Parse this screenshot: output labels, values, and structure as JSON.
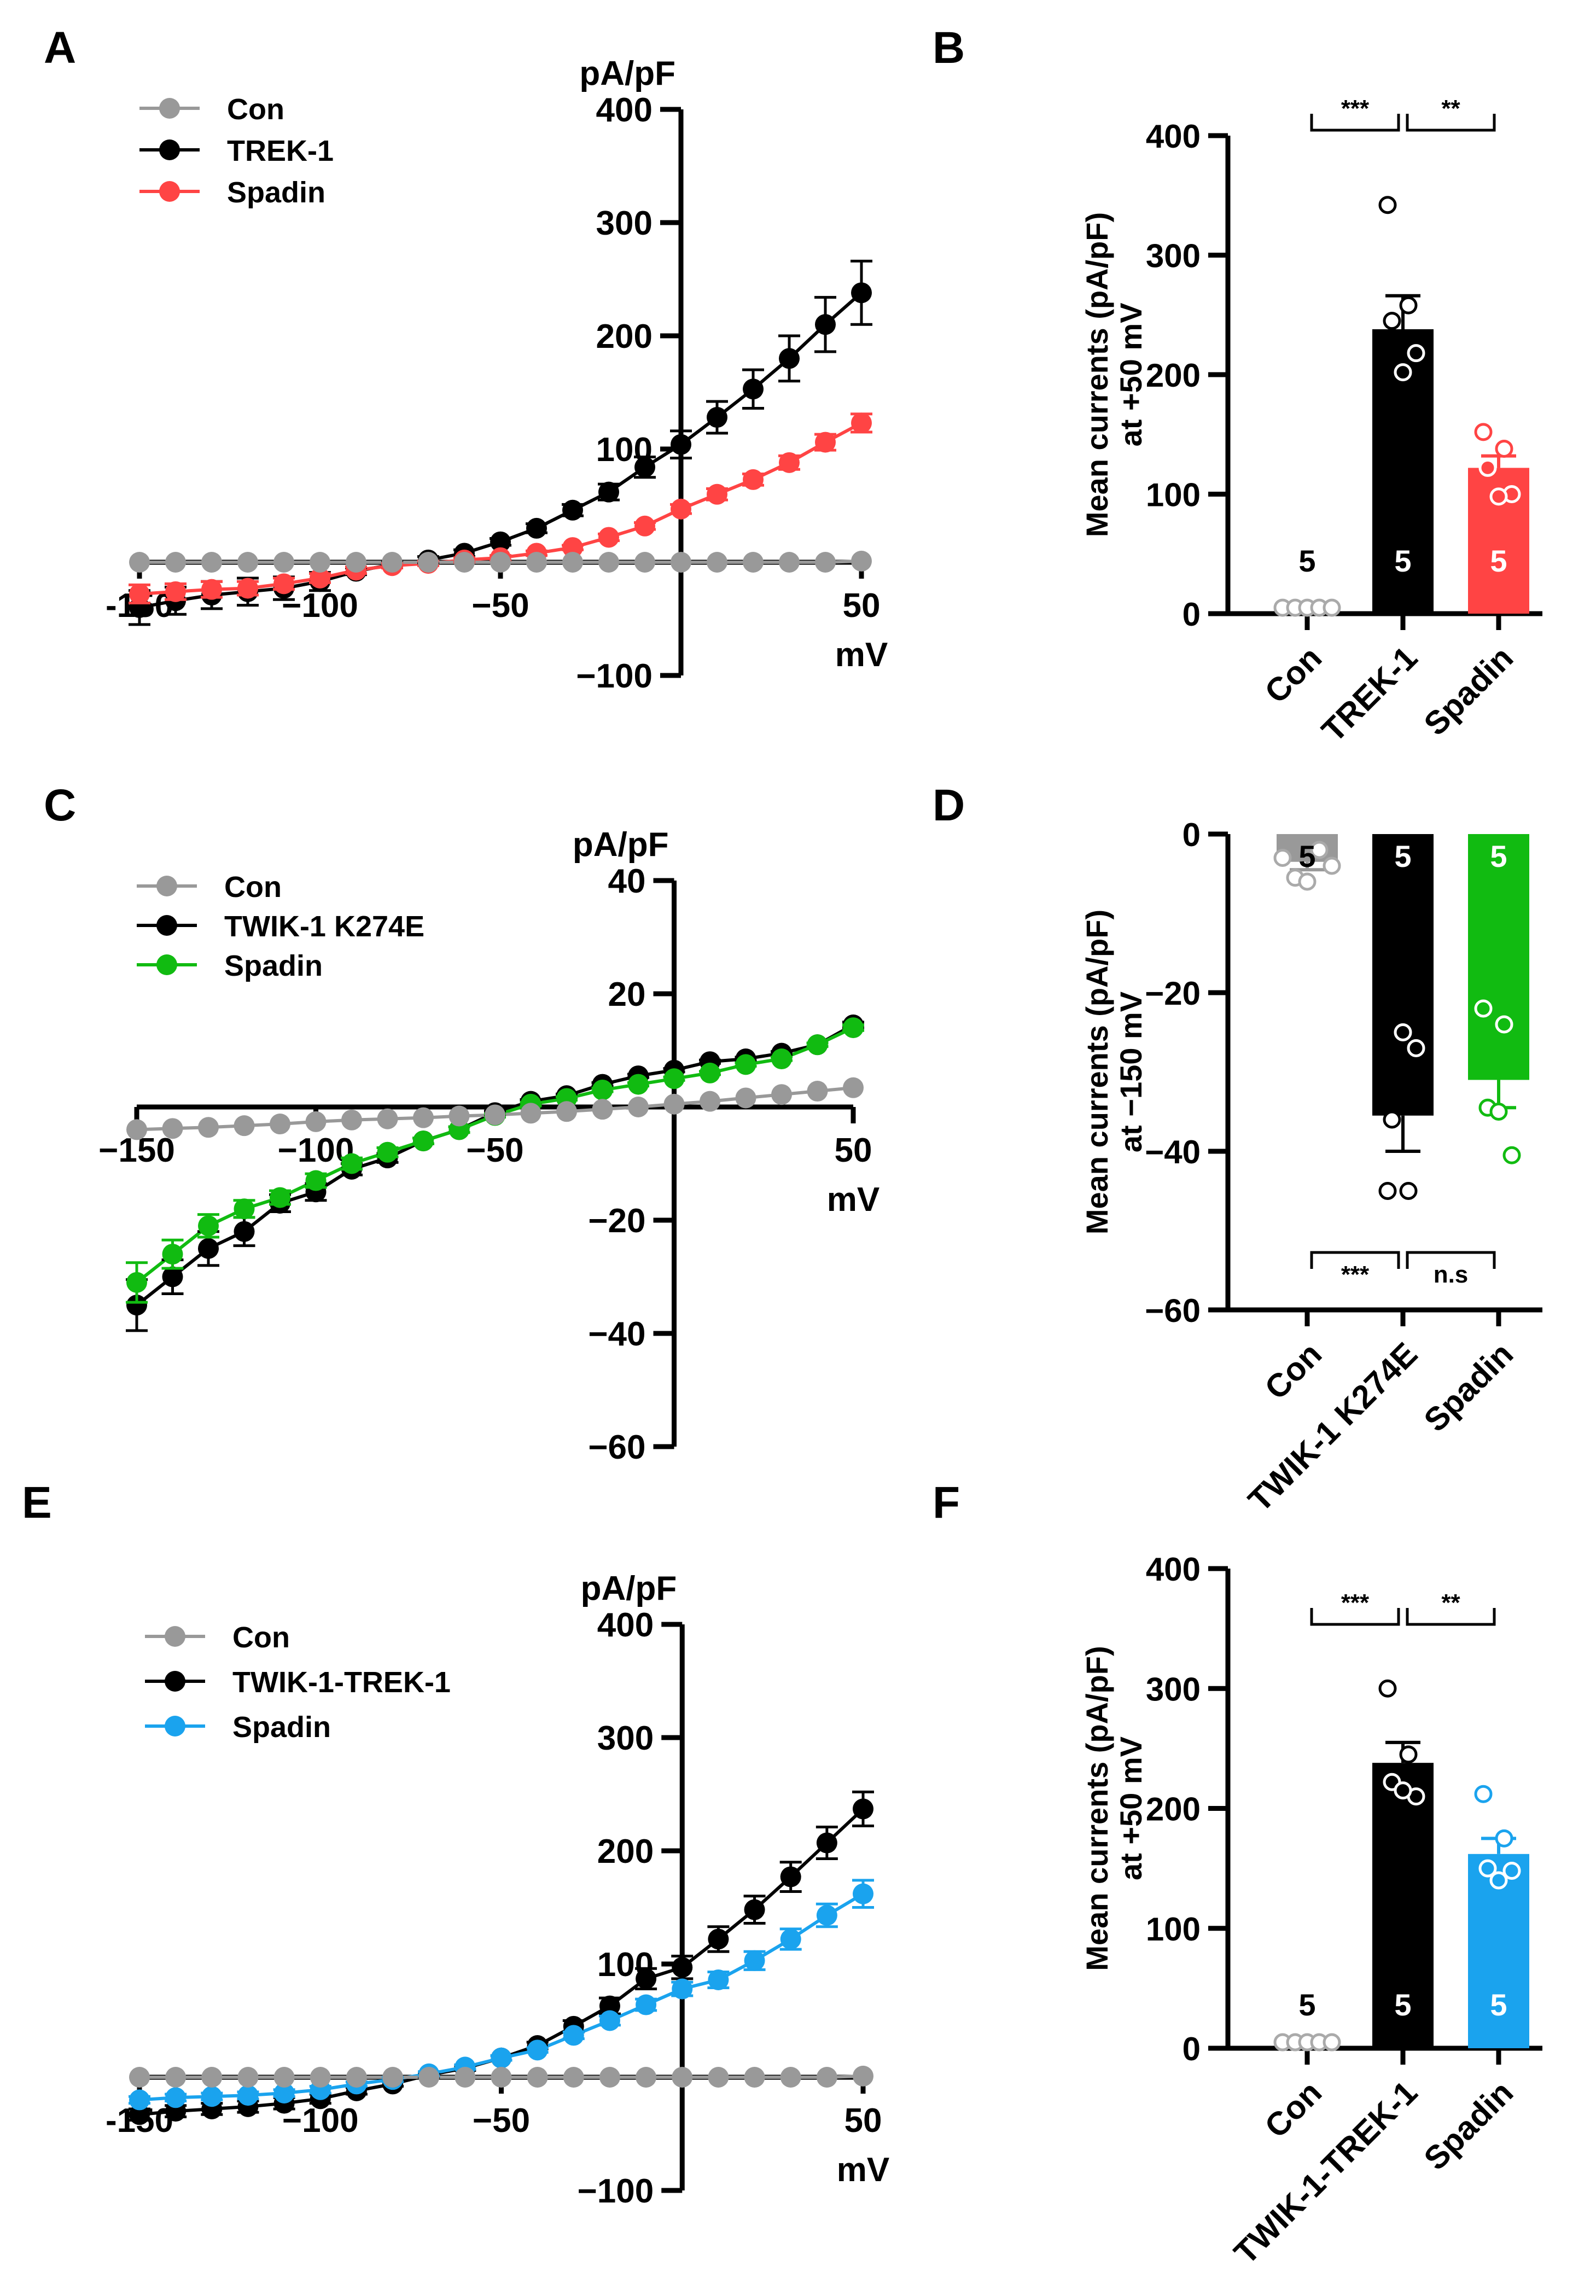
{
  "colors": {
    "con": "#999999",
    "black": "#000000",
    "red": "#ff4444",
    "green": "#11bb11",
    "blue": "#1aa3ee"
  },
  "chart_data": [
    {
      "panel": "A",
      "type": "line",
      "ylabel": "pA/pF",
      "xlabel": "mV",
      "xlim": [
        -150,
        50
      ],
      "ylim": [
        -100,
        400
      ],
      "xticks": [
        -150,
        -100,
        -50,
        50
      ],
      "xtick_labels": [
        "-150",
        "−100",
        "−50",
        "50"
      ],
      "yticks": [
        400,
        300,
        200,
        100,
        -100
      ],
      "ytick_labels": [
        "400",
        "300",
        "200",
        "100",
        "−100"
      ],
      "x": [
        -150,
        -140,
        -130,
        -120,
        -110,
        -100,
        -90,
        -80,
        -70,
        -60,
        -50,
        -40,
        -30,
        -20,
        -10,
        0,
        10,
        20,
        30,
        40,
        50
      ],
      "series": [
        {
          "name": "Con",
          "color": "#999999",
          "values": [
            0,
            0,
            0,
            0,
            0,
            0,
            0,
            0,
            0,
            0,
            0,
            0,
            0,
            0,
            0,
            0,
            0,
            0,
            0,
            0,
            1
          ],
          "errors": [
            0,
            0,
            0,
            0,
            0,
            0,
            0,
            0,
            0,
            0,
            0,
            0,
            0,
            0,
            0,
            0,
            0,
            0,
            0,
            0,
            0
          ]
        },
        {
          "name": "TREK-1",
          "color": "#000000",
          "values": [
            -40,
            -34,
            -29,
            -26,
            -23,
            -17,
            -8,
            -2,
            2,
            8,
            18,
            30,
            46,
            62,
            84,
            104,
            128,
            153,
            180,
            210,
            238
          ],
          "errors": [
            15,
            12,
            12,
            12,
            10,
            8,
            3,
            3,
            3,
            3,
            3,
            4,
            5,
            7,
            9,
            12,
            14,
            17,
            20,
            24,
            28
          ]
        },
        {
          "name": "Spadin",
          "color": "#ff4444",
          "values": [
            -28,
            -26,
            -24,
            -23,
            -19,
            -14,
            -7,
            -3,
            -1,
            2,
            4,
            8,
            13,
            22,
            32,
            47,
            60,
            73,
            88,
            106,
            123
          ],
          "errors": [
            8,
            7,
            7,
            6,
            5,
            4,
            3,
            2,
            2,
            2,
            2,
            2,
            2,
            3,
            3,
            4,
            5,
            5,
            6,
            7,
            8
          ]
        }
      ]
    },
    {
      "panel": "B",
      "type": "bar",
      "ylabel": "Mean currents (pA/pF)",
      "ylabel2": "at +50 mV",
      "ylim": [
        0,
        400
      ],
      "yticks": [
        0,
        100,
        200,
        300,
        400
      ],
      "ytick_labels": [
        "0",
        "100",
        "200",
        "300",
        "400"
      ],
      "categories": [
        "Con",
        "TREK-1",
        "Spadin"
      ],
      "values": [
        5,
        238,
        122
      ],
      "errors": [
        1,
        28,
        10
      ],
      "points": [
        [
          5,
          5,
          5,
          5,
          5
        ],
        [
          342,
          258,
          245,
          218,
          202
        ],
        [
          152,
          138,
          122,
          100,
          98
        ]
      ],
      "n_labels": [
        "5",
        "5",
        "5"
      ],
      "colors": [
        "#999999",
        "#000000",
        "#ff4444"
      ],
      "significance": [
        {
          "from": 0,
          "to": 1,
          "label": "***"
        },
        {
          "from": 1,
          "to": 2,
          "label": "**"
        }
      ]
    },
    {
      "panel": "C",
      "type": "line",
      "ylabel": "pA/pF",
      "xlabel": "mV",
      "xlim": [
        -150,
        50
      ],
      "ylim": [
        -60,
        40
      ],
      "xticks": [
        -150,
        -100,
        -50,
        50
      ],
      "xtick_labels": [
        "−150",
        "−100",
        "−50",
        "50"
      ],
      "yticks": [
        40,
        20,
        -20,
        -40,
        -60
      ],
      "ytick_labels": [
        "40",
        "20",
        "−20",
        "−40",
        "−60"
      ],
      "x": [
        -150,
        -140,
        -130,
        -120,
        -110,
        -100,
        -90,
        -80,
        -70,
        -60,
        -50,
        -40,
        -30,
        -20,
        -10,
        0,
        10,
        20,
        30,
        40,
        50
      ],
      "series": [
        {
          "name": "Con",
          "color": "#999999",
          "values": [
            -4,
            -3.8,
            -3.6,
            -3.3,
            -3,
            -2.6,
            -2.3,
            -2.1,
            -1.9,
            -1.6,
            -1.4,
            -1.1,
            -0.8,
            -0.4,
            0,
            0.5,
            1,
            1.6,
            2.2,
            2.8,
            3.4
          ],
          "errors": [
            0,
            0,
            0,
            0,
            0,
            0,
            0,
            0,
            0,
            0,
            0,
            0,
            0,
            0,
            0,
            0,
            0,
            0,
            0,
            0,
            0
          ]
        },
        {
          "name": "TWIK-1 K274E",
          "color": "#000000",
          "values": [
            -35,
            -30,
            -25,
            -22,
            -17,
            -15,
            -11,
            -9,
            -6,
            -4,
            -1,
            1,
            2,
            4,
            5.5,
            6.5,
            8,
            8.5,
            9.5,
            11,
            14.5
          ],
          "errors": [
            4.5,
            3,
            3,
            2.5,
            1.5,
            1.5,
            1,
            0.8,
            0.5,
            0.5,
            0.3,
            0.3,
            0.3,
            0.3,
            0.3,
            0.3,
            0.3,
            0.3,
            0.3,
            0.3,
            0.5
          ]
        },
        {
          "name": "Spadin",
          "color": "#11bb11",
          "values": [
            -31,
            -26,
            -21,
            -18,
            -16,
            -13,
            -10,
            -8,
            -6,
            -4,
            -1.5,
            0.5,
            1.5,
            3,
            4,
            5,
            6,
            7.5,
            8.5,
            11,
            14
          ],
          "errors": [
            3.5,
            2.5,
            2,
            1.5,
            1.2,
            1.2,
            1,
            0.8,
            0.5,
            0.5,
            0.3,
            0.3,
            0.3,
            0.3,
            0.3,
            0.3,
            0.3,
            0.3,
            0.3,
            0.3,
            0.5
          ]
        }
      ]
    },
    {
      "panel": "D",
      "type": "bar",
      "ylabel": "Mean currents (pA/pF)",
      "ylabel2": "at −150 mV",
      "ylim": [
        -60,
        0
      ],
      "yticks": [
        0,
        -20,
        -40,
        -60
      ],
      "ytick_labels": [
        "0",
        "−20",
        "−40",
        "−60"
      ],
      "categories": [
        "Con",
        "TWIK-1 K274E",
        "Spadin"
      ],
      "values": [
        -3.5,
        -35.5,
        -31
      ],
      "errors": [
        1,
        4.5,
        3.5
      ],
      "points": [
        [
          -3,
          -5.5,
          -6,
          -2,
          -4
        ],
        [
          -45,
          -45,
          -36,
          -27,
          -25
        ],
        [
          -22,
          -24,
          -34.5,
          -40.5,
          -35
        ]
      ],
      "n_labels": [
        "5",
        "5",
        "5"
      ],
      "colors": [
        "#999999",
        "#000000",
        "#11bb11"
      ],
      "significance": [
        {
          "from": 0,
          "to": 1,
          "label": "***"
        },
        {
          "from": 1,
          "to": 2,
          "label": "n.s"
        }
      ]
    },
    {
      "panel": "E",
      "type": "line",
      "ylabel": "pA/pF",
      "xlabel": "mV",
      "xlim": [
        -150,
        50
      ],
      "ylim": [
        -100,
        400
      ],
      "xticks": [
        -150,
        -100,
        -50,
        50
      ],
      "xtick_labels": [
        "-150",
        "−100",
        "−50",
        "50"
      ],
      "yticks": [
        400,
        300,
        200,
        100,
        -100
      ],
      "ytick_labels": [
        "400",
        "300",
        "200",
        "100",
        "−100"
      ],
      "x": [
        -150,
        -140,
        -130,
        -120,
        -110,
        -100,
        -90,
        -80,
        -70,
        -60,
        -50,
        -40,
        -30,
        -20,
        -10,
        0,
        10,
        20,
        30,
        40,
        50
      ],
      "series": [
        {
          "name": "Con",
          "color": "#999999",
          "values": [
            0,
            0,
            0,
            0,
            0,
            0,
            0,
            0,
            0,
            0,
            0,
            0,
            0,
            0,
            0,
            0,
            0,
            0,
            0,
            0,
            1
          ],
          "errors": [
            0,
            0,
            0,
            0,
            0,
            0,
            0,
            0,
            0,
            0,
            0,
            0,
            0,
            0,
            0,
            0,
            0,
            0,
            0,
            0,
            0
          ]
        },
        {
          "name": "TWIK-1-TREK-1",
          "color": "#000000",
          "values": [
            -33,
            -30,
            -28,
            -26,
            -23,
            -19,
            -12,
            -6,
            2,
            8,
            17,
            28,
            45,
            63,
            87,
            97,
            122,
            148,
            177,
            207,
            237
          ],
          "errors": [
            5,
            5,
            5,
            5,
            5,
            4,
            3,
            2,
            2,
            2,
            2,
            3,
            5,
            7,
            9,
            10,
            11,
            12,
            13,
            14,
            15
          ]
        },
        {
          "name": "Spadin",
          "color": "#1aa3ee",
          "values": [
            -20,
            -18,
            -17,
            -16,
            -14,
            -11,
            -6,
            -2,
            3,
            9,
            17,
            24,
            37,
            50,
            64,
            78,
            86,
            103,
            122,
            143,
            162
          ],
          "errors": [
            3,
            3,
            3,
            3,
            3,
            3,
            2,
            2,
            2,
            2,
            2,
            2,
            3,
            4,
            5,
            6,
            7,
            8,
            9,
            10,
            12
          ]
        }
      ]
    },
    {
      "panel": "F",
      "type": "bar",
      "ylabel": "Mean currents (pA/pF)",
      "ylabel2": "at +50 mV",
      "ylim": [
        0,
        400
      ],
      "yticks": [
        0,
        100,
        200,
        300,
        400
      ],
      "ytick_labels": [
        "0",
        "100",
        "200",
        "300",
        "400"
      ],
      "categories": [
        "Con",
        "TWIK-1-TREK-1",
        "Spadin"
      ],
      "values": [
        5,
        238,
        162
      ],
      "errors": [
        1,
        17,
        13
      ],
      "points": [
        [
          5,
          5,
          5,
          5,
          5
        ],
        [
          300,
          245,
          222,
          210,
          215
        ],
        [
          212,
          175,
          150,
          148,
          140
        ]
      ],
      "n_labels": [
        "5",
        "5",
        "5"
      ],
      "colors": [
        "#999999",
        "#000000",
        "#1aa3ee"
      ],
      "significance": [
        {
          "from": 0,
          "to": 1,
          "label": "***"
        },
        {
          "from": 1,
          "to": 2,
          "label": "**"
        }
      ]
    }
  ]
}
